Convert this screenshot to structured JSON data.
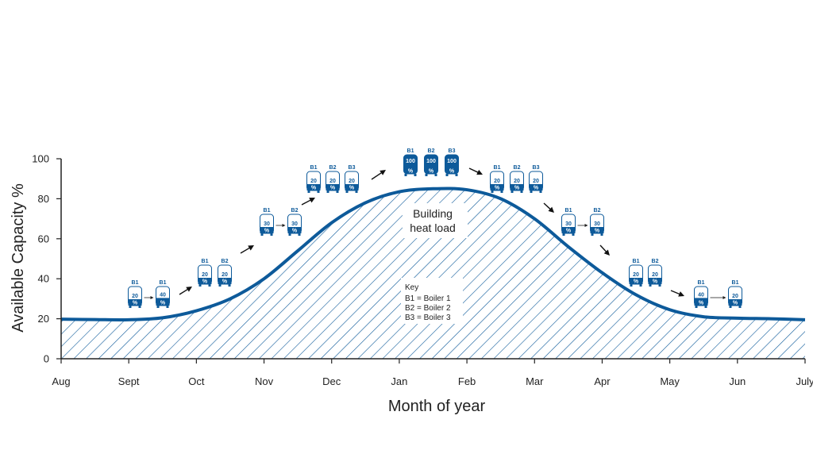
{
  "chart_data": {
    "type": "area",
    "xlabel": "Month of year",
    "ylabel": "Available Capacity %",
    "ylim": [
      0,
      100
    ],
    "yticks": [
      0,
      20,
      40,
      60,
      80,
      100
    ],
    "categories": [
      "Aug",
      "Sept",
      "Oct",
      "Nov",
      "Dec",
      "Jan",
      "Feb",
      "Mar",
      "Apr",
      "May",
      "Jun",
      "July"
    ],
    "series": [
      {
        "name": "Building heat load",
        "x": [
          0,
          0.5,
          1,
          1.5,
          2,
          2.5,
          3,
          3.5,
          4,
          4.5,
          5,
          5.5,
          6,
          6.5,
          7,
          7.5,
          8,
          8.5,
          9,
          9.5,
          10,
          10.5,
          11
        ],
        "values": [
          19.8,
          19.6,
          19.5,
          20.5,
          24,
          30,
          40,
          54,
          68,
          78,
          83.5,
          85,
          84.5,
          80,
          70,
          56,
          43,
          32,
          24.5,
          21,
          20.3,
          20,
          19.5
        ]
      }
    ],
    "annotations": {
      "load_label_line1": "Building",
      "load_label_line2": "heat load",
      "key_title": "Key",
      "key_lines": [
        "B1 = Boiler 1",
        "B2 = Boiler 2",
        "B3 = Boiler 3"
      ]
    },
    "boiler_stages": [
      {
        "month": "Sept",
        "boilers": [
          {
            "name": "B1",
            "pct": 20
          },
          {
            "name": "B1",
            "pct": 40
          }
        ]
      },
      {
        "month": "Oct",
        "boilers": [
          {
            "name": "B1",
            "pct": 20
          },
          {
            "name": "B2",
            "pct": 20
          }
        ]
      },
      {
        "month": "Nov",
        "boilers": [
          {
            "name": "B1",
            "pct": 30
          },
          {
            "name": "B2",
            "pct": 30
          }
        ]
      },
      {
        "month": "Dec",
        "boilers": [
          {
            "name": "B1",
            "pct": 20
          },
          {
            "name": "B2",
            "pct": 20
          },
          {
            "name": "B3",
            "pct": 20
          }
        ]
      },
      {
        "month": "Jan",
        "boilers": [
          {
            "name": "B1",
            "pct": 100
          },
          {
            "name": "B2",
            "pct": 100
          },
          {
            "name": "B3",
            "pct": 100
          }
        ]
      },
      {
        "month": "Feb",
        "boilers": [
          {
            "name": "B1",
            "pct": 20
          },
          {
            "name": "B2",
            "pct": 20
          },
          {
            "name": "B3",
            "pct": 20
          }
        ]
      },
      {
        "month": "Mar",
        "boilers": [
          {
            "name": "B1",
            "pct": 30
          },
          {
            "name": "B2",
            "pct": 30
          }
        ]
      },
      {
        "month": "Apr",
        "boilers": [
          {
            "name": "B1",
            "pct": 20
          },
          {
            "name": "B2",
            "pct": 20
          }
        ]
      },
      {
        "month": "May",
        "boilers": [
          {
            "name": "B1",
            "pct": 40
          },
          {
            "name": "B1",
            "pct": 20
          }
        ]
      }
    ],
    "pct_symbol": "%",
    "grid": false,
    "colors": {
      "curve": "#0d5a9a",
      "hatch": "#0d5a9a",
      "boiler": "#0d5a9a",
      "axis": "#222222"
    }
  }
}
